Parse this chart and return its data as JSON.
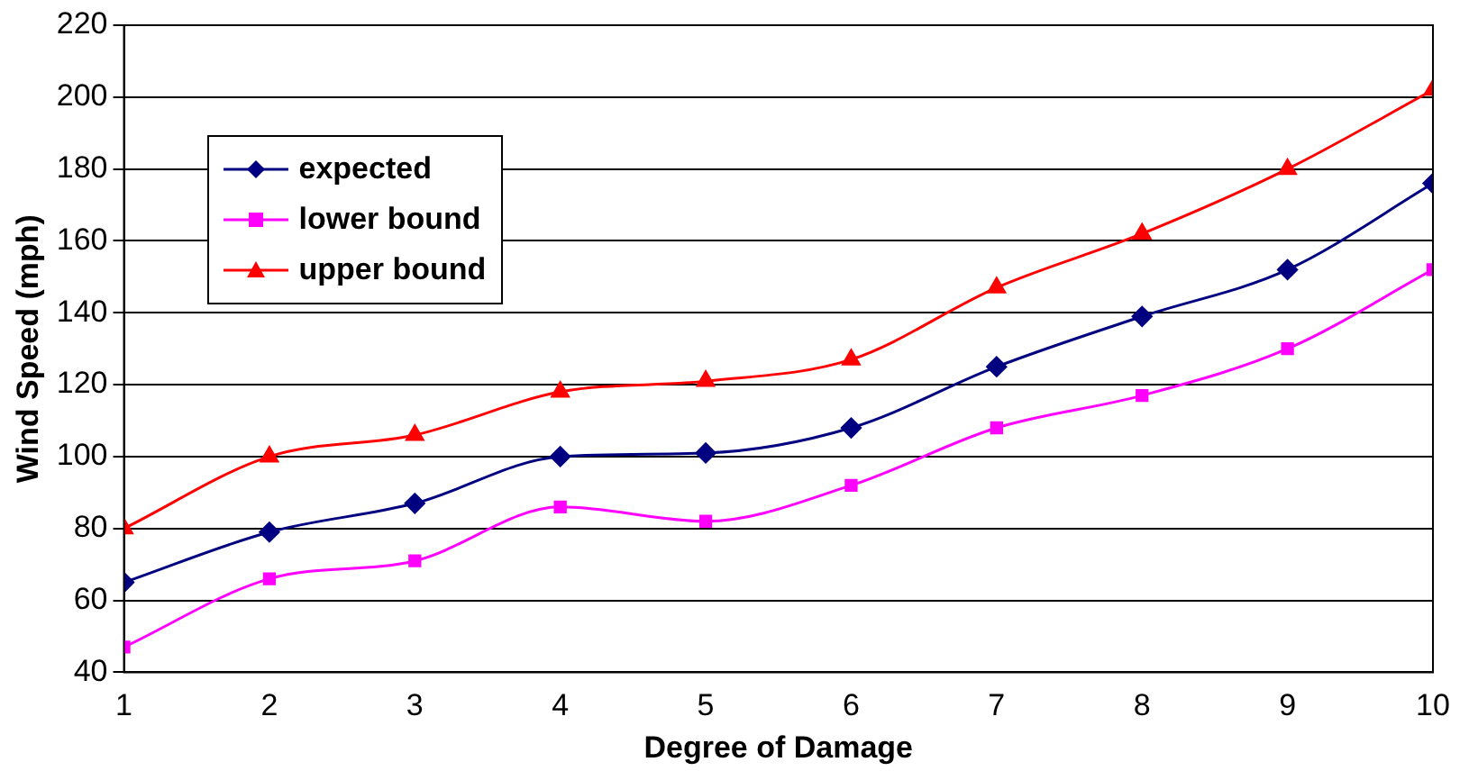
{
  "chart_data": {
    "type": "line",
    "xlabel": "Degree of Damage",
    "ylabel": "Wind Speed (mph)",
    "x": [
      1,
      2,
      3,
      4,
      5,
      6,
      7,
      8,
      9,
      10
    ],
    "series": [
      {
        "name": "expected",
        "color": "#000080",
        "marker": "diamond",
        "values": [
          65,
          79,
          87,
          100,
          101,
          108,
          125,
          139,
          152,
          176
        ]
      },
      {
        "name": "lower bound",
        "color": "#ff00ff",
        "marker": "square",
        "values": [
          47,
          66,
          71,
          86,
          82,
          92,
          108,
          117,
          130,
          152
        ]
      },
      {
        "name": "upper bound",
        "color": "#ff0000",
        "marker": "triangle",
        "values": [
          80,
          100,
          106,
          118,
          121,
          127,
          147,
          162,
          180,
          202
        ]
      }
    ],
    "xlim": [
      1,
      10
    ],
    "xticks": [
      1,
      2,
      3,
      4,
      5,
      6,
      7,
      8,
      9,
      10
    ],
    "ylim": [
      40,
      220
    ],
    "yticks": [
      40,
      60,
      80,
      100,
      120,
      140,
      160,
      180,
      200,
      220
    ],
    "grid": "y",
    "legend": "top left"
  }
}
